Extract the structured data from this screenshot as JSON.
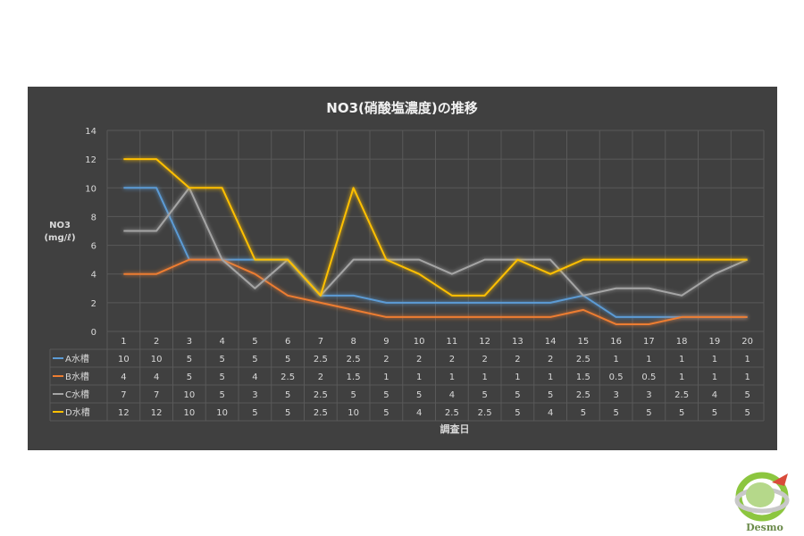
{
  "chart_data": {
    "type": "line",
    "title": "NO3(硝酸塩濃度)の推移",
    "ylabel": "NO3",
    "ylabel_unit": "(mg/ℓ)",
    "xlabel": "調査日",
    "ylim": [
      0,
      14
    ],
    "yticks": [
      0,
      2,
      4,
      6,
      8,
      10,
      12,
      14
    ],
    "categories": [
      "1",
      "2",
      "3",
      "4",
      "5",
      "6",
      "7",
      "8",
      "9",
      "10",
      "11",
      "12",
      "13",
      "14",
      "15",
      "16",
      "17",
      "18",
      "19",
      "20"
    ],
    "grid": true,
    "data_table": true,
    "series": [
      {
        "name": "A水槽",
        "color": "#5b9bd5",
        "values": [
          10,
          10,
          5,
          5,
          5,
          5,
          2.5,
          2.5,
          2,
          2,
          2,
          2,
          2,
          2,
          2.5,
          1,
          1,
          1,
          1,
          1
        ]
      },
      {
        "name": "B水槽",
        "color": "#ed7d31",
        "values": [
          4,
          4,
          5,
          5,
          4,
          2.5,
          2,
          1.5,
          1,
          1,
          1,
          1,
          1,
          1,
          1.5,
          0.5,
          0.5,
          1,
          1,
          1
        ]
      },
      {
        "name": "C水槽",
        "color": "#a5a5a5",
        "values": [
          7,
          7,
          10,
          5,
          3,
          5,
          2.5,
          5,
          5,
          5,
          4,
          5,
          5,
          5,
          2.5,
          3,
          3,
          2.5,
          4,
          5
        ]
      },
      {
        "name": "D水槽",
        "color": "#ffc000",
        "values": [
          12,
          12,
          10,
          10,
          5,
          5,
          2.5,
          10,
          5,
          4,
          2.5,
          2.5,
          5,
          4,
          5,
          5,
          5,
          5,
          5,
          5
        ]
      }
    ]
  },
  "logo": {
    "text": "Desmo"
  },
  "colors": {
    "panel": "#404040",
    "grid": "#595959",
    "text": "#d9d9d9",
    "title": "#f2f2f2"
  }
}
